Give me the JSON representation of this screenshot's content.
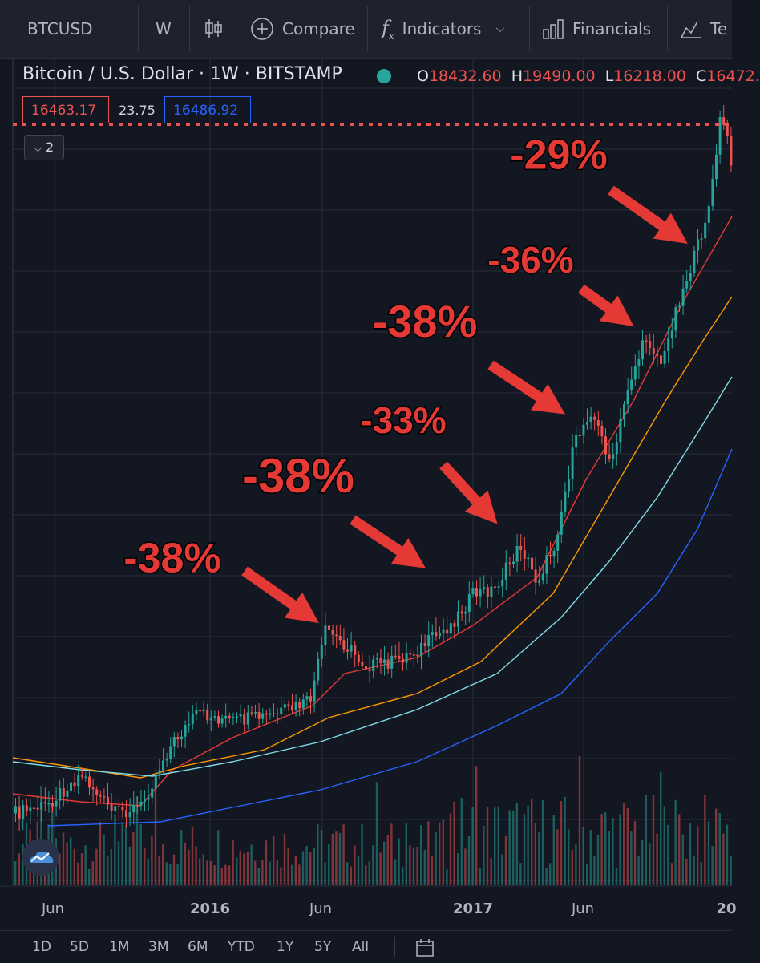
{
  "toolbar": {
    "symbol": "BTCUSD",
    "interval": "W",
    "compare_label": "Compare",
    "indicators_label": "Indicators",
    "financials_label": "Financials",
    "templates_label": "Te"
  },
  "legend": {
    "title": "Bitcoin / U.S. Dollar · 1W · BITSTAMP",
    "open_key": "O",
    "open": "18432.60",
    "high_key": "H",
    "high": "19490.00",
    "low_key": "L",
    "low": "16218.00",
    "close_key": "C",
    "close": "16472.",
    "bid": "16463.17",
    "spread": "23.75",
    "ask": "16486.92",
    "collapse_count": "2"
  },
  "colors": {
    "background": "#131722",
    "up_candle": "#26a69a",
    "down_candle": "#ef5350",
    "ma_red": "#e53935",
    "ma_orange": "#ff9800",
    "ma_cyan": "#80deea",
    "ma_blue": "#2962ff",
    "annotation": "#e53935"
  },
  "chart_data": {
    "type": "candlestick",
    "x_ticks": [
      "Jun",
      "2016",
      "Jun",
      "2017",
      "Jun",
      "20"
    ],
    "y_range_description": "price axis not visible",
    "annotations": [
      {
        "label": "-38%"
      },
      {
        "label": "-38%"
      },
      {
        "label": "-33%"
      },
      {
        "label": "-38%"
      },
      {
        "label": "-36%"
      },
      {
        "label": "-29%"
      }
    ],
    "moving_averages": [
      "red",
      "orange",
      "cyan",
      "blue"
    ]
  },
  "range_buttons": [
    "1D",
    "5D",
    "1M",
    "3M",
    "6M",
    "YTD",
    "1Y",
    "5Y",
    "All"
  ]
}
